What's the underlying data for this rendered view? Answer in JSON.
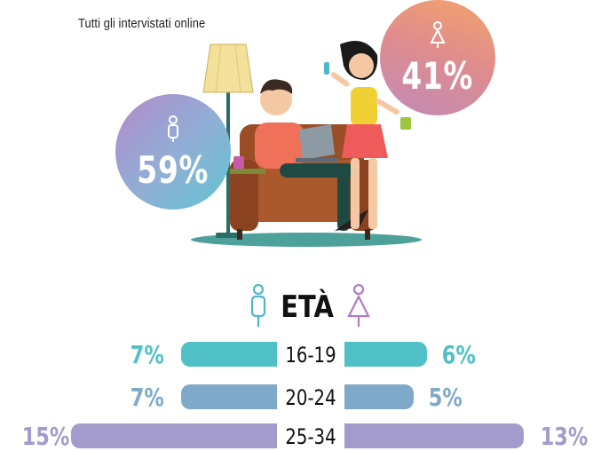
{
  "subtitle": "Tutti gli intervistati online",
  "gender": {
    "male": {
      "percent": "59%"
    },
    "female": {
      "percent": "41%"
    }
  },
  "age_section": {
    "title": "ETÀ",
    "rows": [
      {
        "range": "16-19",
        "male": "7%",
        "female": "6%",
        "male_value": 7,
        "female_value": 6,
        "color": "#4fc1c6"
      },
      {
        "range": "20-24",
        "male": "7%",
        "female": "5%",
        "male_value": 7,
        "female_value": 5,
        "color": "#7ea9c8"
      },
      {
        "range": "25-34",
        "male": "15%",
        "female": "13%",
        "male_value": 15,
        "female_value": 13,
        "color": "#a39bcb"
      }
    ]
  },
  "colors": {
    "male_icon": "#4fb8c8",
    "female_icon": "#b07cc6",
    "text_dark": "#111111"
  }
}
